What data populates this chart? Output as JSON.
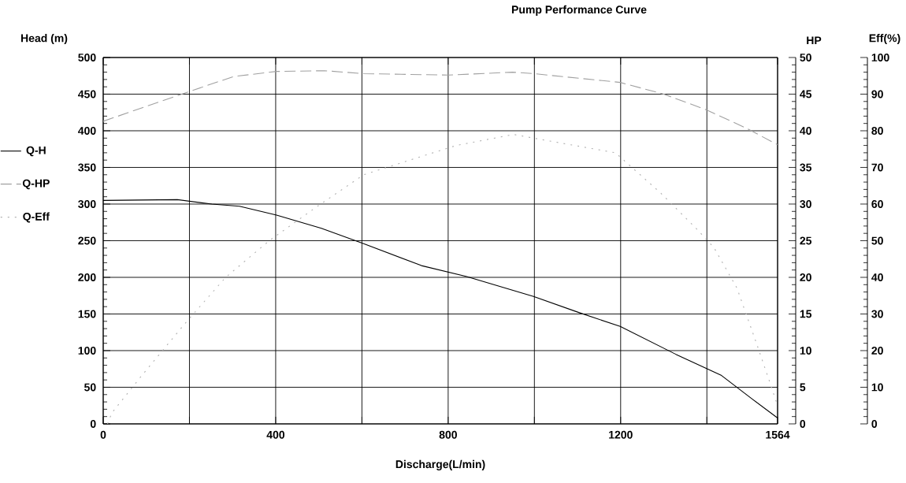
{
  "chart_data": {
    "type": "line",
    "title": "Pump Performance Curve",
    "xlabel": "Discharge(L/min)",
    "ylabel": "Head (m)",
    "y2label": "HP",
    "y3label": "Eff(%)",
    "xlim": [
      0,
      1564
    ],
    "xticks": [
      0,
      {
        "value": 200,
        "label": null
      },
      400,
      {
        "value": 600,
        "label": null
      },
      800,
      {
        "value": 1000,
        "label": null
      },
      1200,
      {
        "value": 1400,
        "label": null
      },
      1564
    ],
    "ylim": [
      0,
      500
    ],
    "yticks": [
      0,
      50,
      100,
      150,
      200,
      250,
      300,
      350,
      400,
      450,
      500
    ],
    "y2lim": [
      0,
      50
    ],
    "y2ticks": [
      0,
      5,
      10,
      15,
      20,
      25,
      30,
      35,
      40,
      45,
      50
    ],
    "y3lim": [
      0,
      100
    ],
    "y3ticks": [
      0,
      10,
      20,
      30,
      40,
      50,
      60,
      70,
      80,
      90,
      100
    ],
    "grid": true,
    "legend": "left",
    "series": [
      {
        "name": "Q-H",
        "color": "#000000",
        "line_style": "solid",
        "x": [
          0,
          172,
          252,
          316,
          402,
          506,
          604,
          738,
          843,
          998,
          1103,
          1199,
          1328,
          1434,
          1505,
          1564
        ],
        "values": [
          305,
          306,
          300,
          297,
          285,
          267,
          246,
          216,
          201,
          174,
          152,
          133,
          95,
          66,
          34,
          8
        ]
      },
      {
        "name": "Q-HP",
        "color": "#a0a0a0",
        "line_style": "dashed",
        "axis": "y2",
        "x": [
          0,
          172,
          302,
          402,
          513,
          604,
          801,
          949,
          998,
          1199,
          1300,
          1397,
          1490,
          1564
        ],
        "values": [
          41.3,
          44.8,
          47.4,
          48.1,
          48.2,
          47.8,
          47.6,
          48.0,
          47.8,
          46.6,
          45.0,
          42.9,
          40.4,
          38.1
        ]
      },
      {
        "name": "Q-Eff",
        "color": "#b0b0b0",
        "line_style": "dotted",
        "axis": "y3",
        "x": [
          10,
          20,
          88,
          194,
          284,
          385,
          492,
          604,
          738,
          819,
          952,
          998,
          1188,
          1293,
          1378,
          1417,
          1470,
          1515,
          1547,
          1561
        ],
        "values": [
          0,
          3,
          13,
          28,
          40,
          50,
          59,
          68,
          73,
          76,
          79,
          78,
          74,
          63,
          53,
          48,
          37,
          22,
          11,
          6
        ]
      }
    ]
  }
}
